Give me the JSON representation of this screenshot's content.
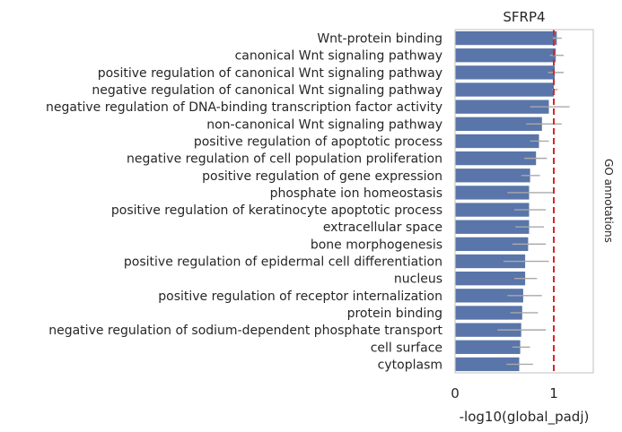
{
  "chart_data": {
    "type": "bar",
    "orientation": "horizontal",
    "title": "SFRP4",
    "xlabel": "-log10(global_padj)",
    "right_label": "GO annotations",
    "xlim": [
      0,
      1.4
    ],
    "xticks": [
      0,
      1
    ],
    "reference_line": {
      "x": 1,
      "style": "dashed",
      "color": "#d62728"
    },
    "grid": false,
    "bar_color": "#5975a9",
    "error_color": "#a9a9a9",
    "categories": [
      "Wnt-protein binding",
      "canonical Wnt signaling pathway",
      "positive regulation of canonical Wnt signaling pathway",
      "negative regulation of canonical Wnt signaling pathway",
      "negative regulation of DNA-binding transcription factor activity",
      "non-canonical Wnt signaling pathway",
      "positive regulation of apoptotic process",
      "negative regulation of cell population proliferation",
      "positive regulation of gene expression",
      "phosphate ion homeostasis",
      "positive regulation of keratinocyte apoptotic process",
      "extracellular space",
      "bone morphogenesis",
      "positive regulation of epidermal cell differentiation",
      "nucleus",
      "positive regulation of receptor internalization",
      "protein binding",
      "negative regulation of sodium-dependent phosphate transport",
      "cell surface",
      "cytoplasm"
    ],
    "values": [
      1.03,
      1.02,
      1.01,
      1.0,
      0.95,
      0.88,
      0.85,
      0.82,
      0.76,
      0.75,
      0.75,
      0.75,
      0.74,
      0.71,
      0.71,
      0.69,
      0.68,
      0.67,
      0.66,
      0.65
    ],
    "err_low": [
      0.99,
      0.96,
      0.94,
      0.98,
      0.76,
      0.72,
      0.76,
      0.7,
      0.67,
      0.53,
      0.6,
      0.61,
      0.58,
      0.49,
      0.6,
      0.53,
      0.56,
      0.43,
      0.58,
      0.52
    ],
    "err_high": [
      1.08,
      1.1,
      1.1,
      1.04,
      1.16,
      1.08,
      0.95,
      0.93,
      0.86,
      1.0,
      0.92,
      0.9,
      0.92,
      0.95,
      0.83,
      0.88,
      0.84,
      0.92,
      0.76,
      0.79
    ]
  }
}
